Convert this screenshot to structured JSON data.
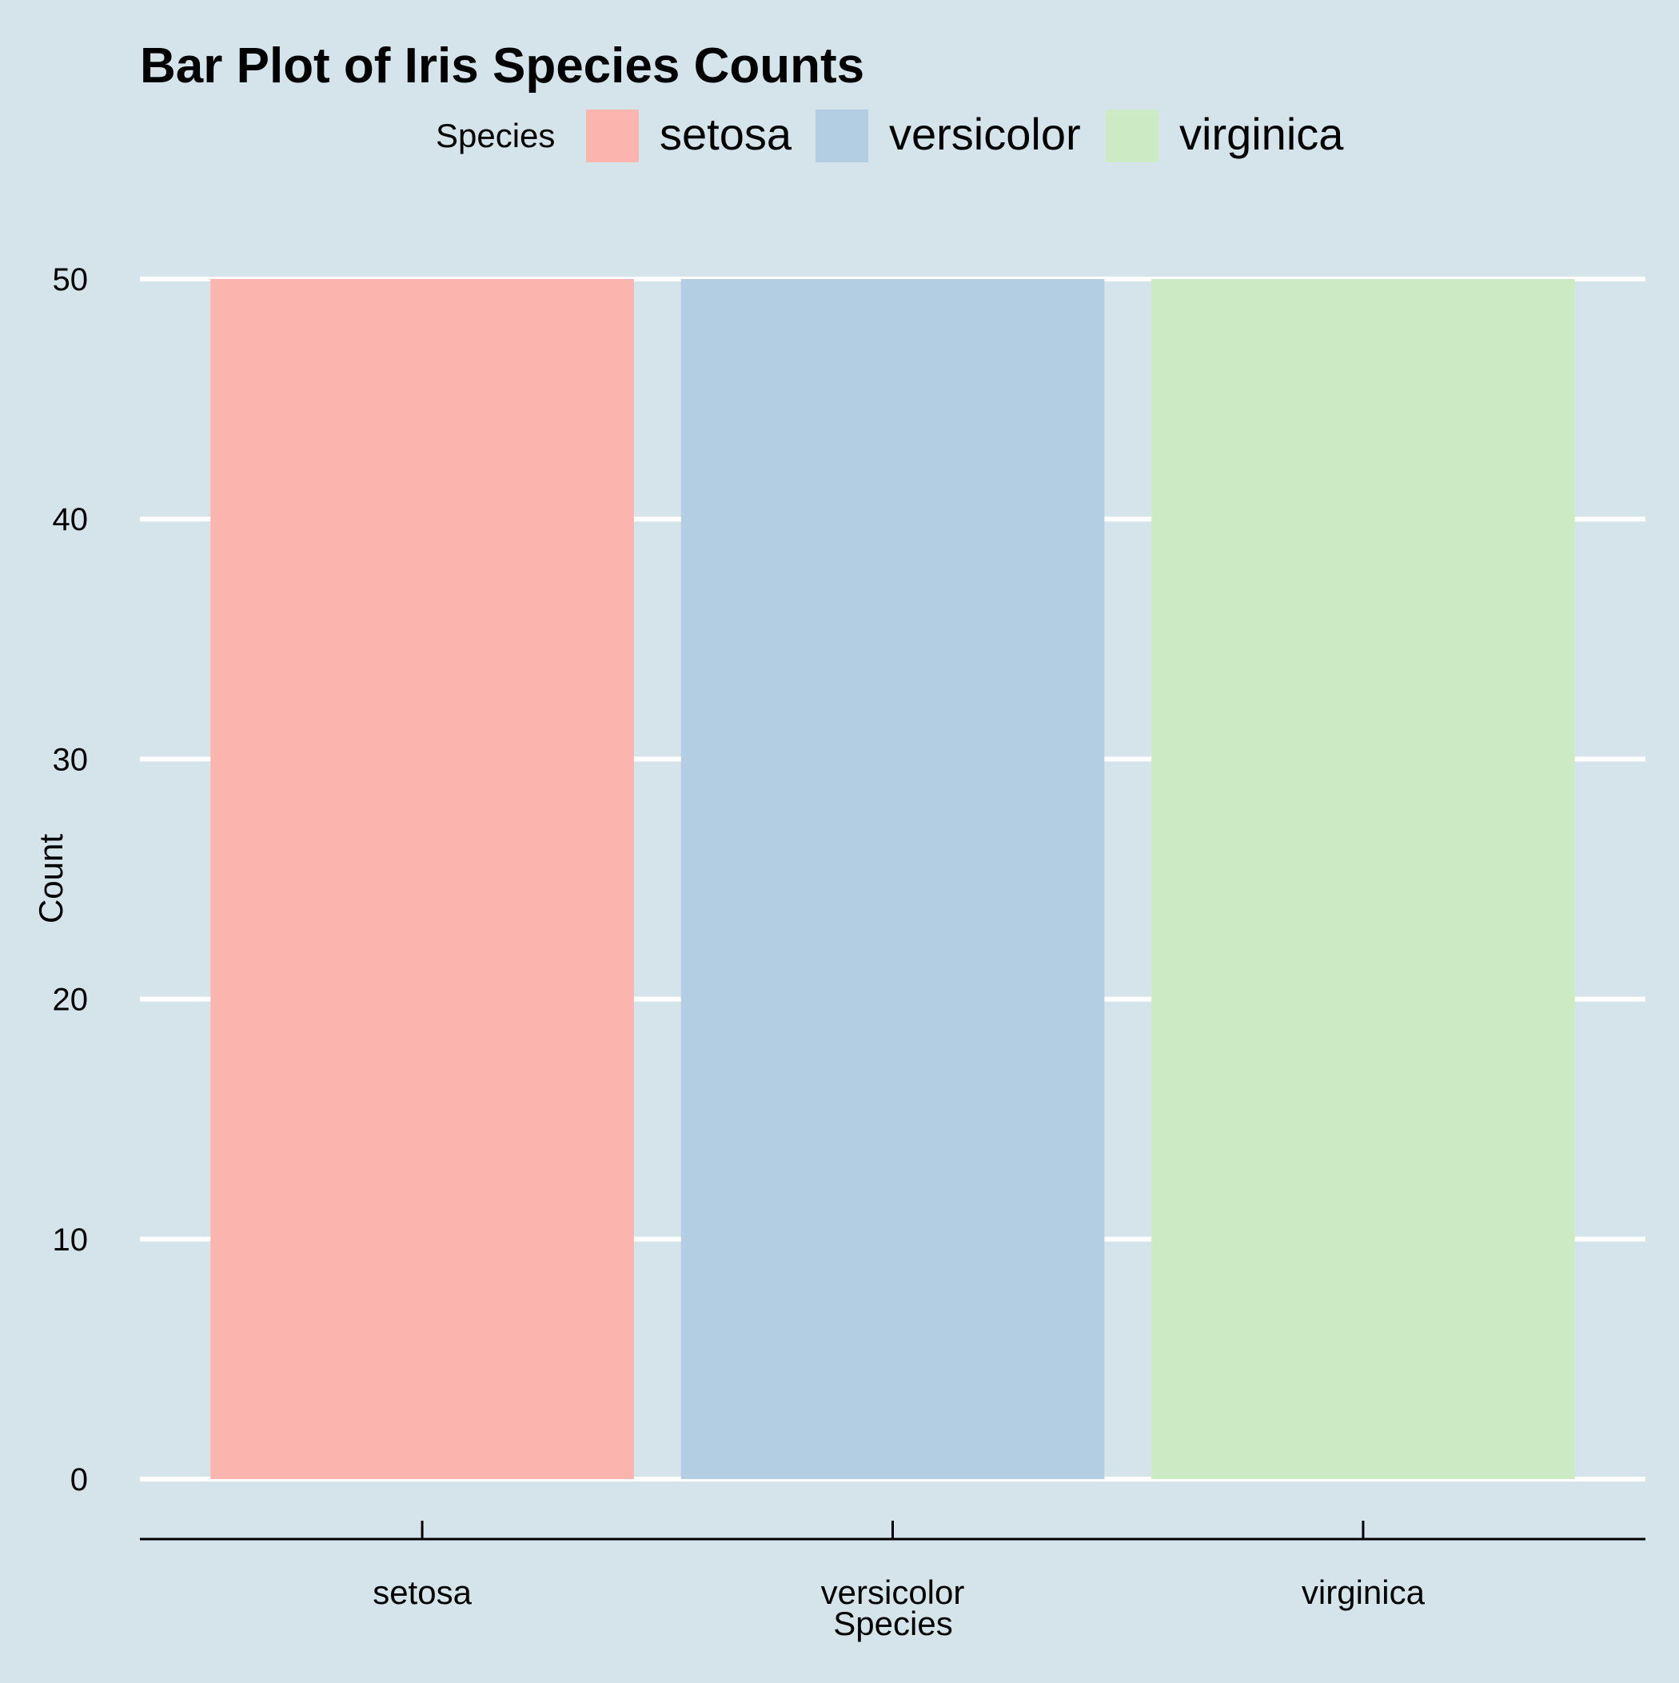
{
  "chart_data": {
    "type": "bar",
    "title": "Bar Plot of Iris Species Counts",
    "xlabel": "Species",
    "ylabel": "Count",
    "categories": [
      "setosa",
      "versicolor",
      "virginica"
    ],
    "values": [
      50,
      50,
      50
    ],
    "ylim": [
      0,
      50
    ],
    "yticks": [
      0,
      10,
      20,
      30,
      40,
      50
    ],
    "grid": "horizontal",
    "legend": {
      "title": "Species",
      "position": "top",
      "entries": [
        "setosa",
        "versicolor",
        "virginica"
      ]
    },
    "colors": {
      "background": "#d5e4eb",
      "grid": "#ffffff",
      "axis": "#000000",
      "series": [
        "#fbb4ae",
        "#b3cde3",
        "#ccebc5"
      ]
    }
  }
}
